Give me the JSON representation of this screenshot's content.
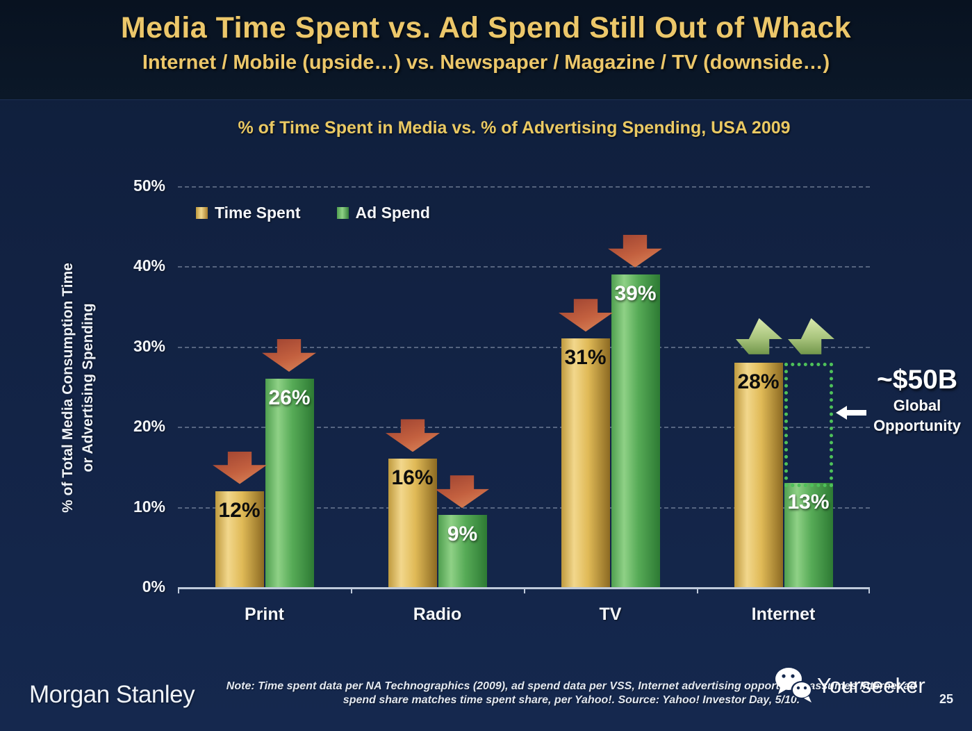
{
  "slide": {
    "title": "Media Time Spent vs. Ad Spend Still Out of Whack",
    "subtitle": "Internet / Mobile (upside…) vs. Newspaper / Magazine / TV (downside…)",
    "page_number": "25"
  },
  "chart_data": {
    "type": "bar",
    "title": "% of Time Spent in Media vs. % of Advertising Spending, USA 2009",
    "categories": [
      "Print",
      "Radio",
      "TV",
      "Internet"
    ],
    "series": [
      {
        "name": "Time Spent",
        "values": [
          12,
          16,
          31,
          28
        ],
        "color": "#d9ad4e",
        "label_style": "dark"
      },
      {
        "name": "Ad Spend",
        "values": [
          26,
          9,
          39,
          13
        ],
        "color": "#57a95c",
        "label_style": "light"
      }
    ],
    "value_suffix": "%",
    "ylabel": "% of Total Media Consumption Time or Advertising Spending",
    "ylabel_line1": "% of Total Media Consumption Time",
    "ylabel_line2": "or Advertising Spending",
    "ylim": [
      0,
      50
    ],
    "ytick_step": 10,
    "yticks": [
      "0%",
      "10%",
      "20%",
      "30%",
      "40%",
      "50%"
    ],
    "grid": "dashed-horizontal",
    "legend_position": "top-left-inside",
    "trend_arrows": [
      "down",
      "down",
      "down",
      "up"
    ],
    "annotation": {
      "amount": "~$50B",
      "label_line1": "Global",
      "label_line2": "Opportunity",
      "applies_to": "Internet",
      "gap_between_percent": [
        28,
        13
      ]
    }
  },
  "footer": {
    "logo": "Morgan Stanley",
    "note_line1": "Note: Time spent data per NA Technographics (2009), ad spend data per VSS, Internet advertising opportunity assumes Internet ad",
    "note_line2": "spend share matches time spent share, per Yahoo!. Source: Yahoo! Investor Day, 5/10.",
    "watermark": "Yourseeker"
  },
  "colors": {
    "background": "#12224 3",
    "header_background": "#0a1626",
    "title_gold": "#ecc76a",
    "bar_gold": "#d9ad4e",
    "bar_green": "#57a95c",
    "arrow_down_red": "#c3603f",
    "arrow_up_green": "#a8c47c",
    "dotted_box_green": "#4ec15a",
    "axis": "#bfcadb"
  }
}
